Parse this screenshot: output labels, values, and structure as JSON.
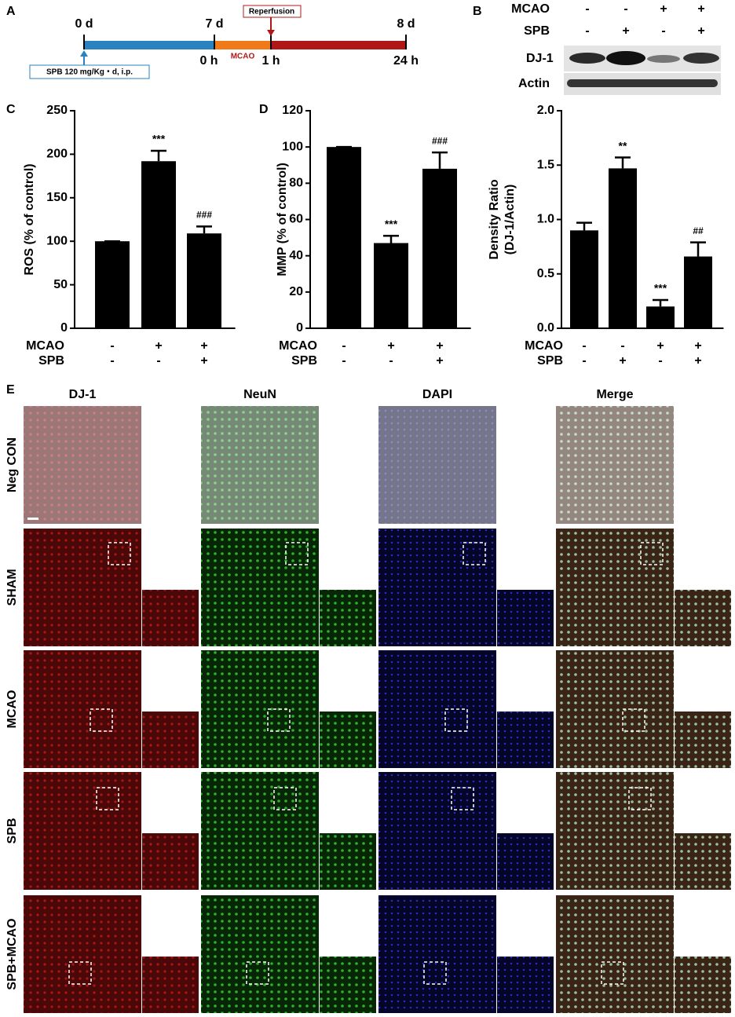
{
  "timeline": {
    "panel": "A",
    "day_labels": [
      "0 d",
      "7 d",
      "8 d"
    ],
    "hour_labels": [
      "0 h",
      "1 h",
      "24 h"
    ],
    "phase": "MCAO",
    "event": "Reperfusion",
    "treatment": "SPB 120 mg/Kg・d, i.p."
  },
  "blot": {
    "panel": "B",
    "conditions": [
      {
        "name": "MCAO",
        "values": [
          "-",
          "-",
          "+",
          "+"
        ]
      },
      {
        "name": "SPB",
        "values": [
          "-",
          "+",
          "-",
          "+"
        ]
      }
    ],
    "rows": [
      "DJ-1",
      "Actin"
    ]
  },
  "chart_data": [
    {
      "type": "bar",
      "panel": "C",
      "ylabel": [
        "ROS (% of control)"
      ],
      "values": [
        100,
        192,
        109
      ],
      "errors": [
        0,
        12,
        8
      ],
      "annotations": [
        null,
        "***",
        "###"
      ],
      "color": "#000000",
      "ylim": [
        0,
        250
      ],
      "yticks": [
        0,
        50,
        100,
        150,
        200,
        250
      ],
      "conditions": [
        {
          "name": "MCAO",
          "values": [
            "-",
            "+",
            "+"
          ]
        },
        {
          "name": "SPB",
          "values": [
            "-",
            "-",
            "+"
          ]
        }
      ]
    },
    {
      "type": "bar",
      "panel": "D",
      "ylabel": [
        "MMP (% of control)"
      ],
      "values": [
        100,
        47,
        88
      ],
      "errors": [
        0,
        4,
        9
      ],
      "annotations": [
        null,
        "***",
        "###"
      ],
      "color": "#000000",
      "ylim": [
        0,
        120
      ],
      "yticks": [
        0,
        20,
        40,
        60,
        80,
        100,
        120
      ],
      "conditions": [
        {
          "name": "MCAO",
          "values": [
            "-",
            "+",
            "+"
          ]
        },
        {
          "name": "SPB",
          "values": [
            "-",
            "-",
            "+"
          ]
        }
      ]
    },
    {
      "type": "bar",
      "ylabel": [
        "Density Ratio",
        "(DJ-1/Actin)"
      ],
      "values": [
        0.9,
        1.47,
        0.2,
        0.66
      ],
      "errors": [
        0.07,
        0.1,
        0.06,
        0.13
      ],
      "annotations": [
        null,
        "**",
        "***",
        "##"
      ],
      "color": "#000000",
      "ylim": [
        0,
        2.0
      ],
      "yticks": [
        {
          "value": 0,
          "label": "0.0"
        },
        {
          "value": 0.5,
          "label": "0.5"
        },
        {
          "value": 1,
          "label": "1.0"
        },
        {
          "value": 1.5,
          "label": "1.5"
        },
        {
          "value": 2,
          "label": "2.0"
        }
      ],
      "conditions": [
        {
          "name": "MCAO",
          "values": [
            "-",
            "-",
            "+",
            "+"
          ]
        },
        {
          "name": "SPB",
          "values": [
            "-",
            "+",
            "-",
            "+"
          ]
        }
      ]
    }
  ],
  "micrographs": {
    "panel": "E",
    "columns": [
      "DJ-1",
      "NeuN",
      "DAPI",
      "Merge"
    ],
    "rows": [
      "Neg CON",
      "SHAM",
      "MCAO",
      "SPB",
      "SPB+MCAO"
    ]
  }
}
